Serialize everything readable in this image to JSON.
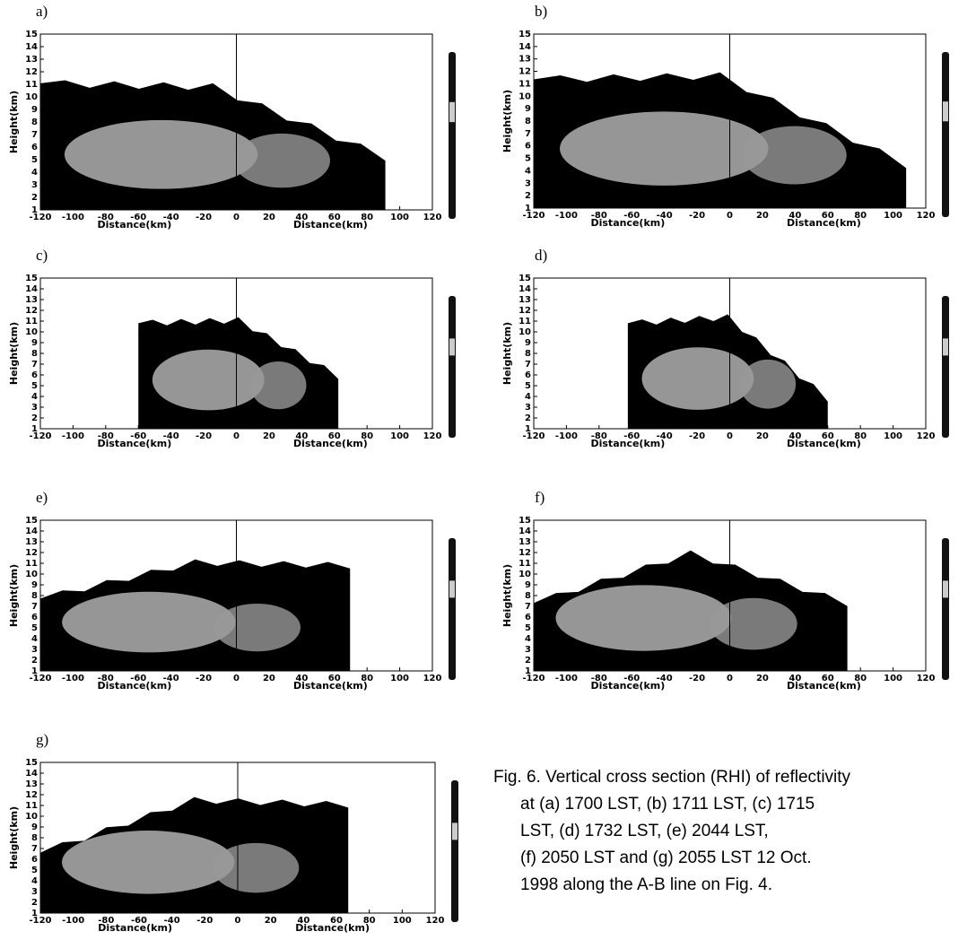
{
  "axes": {
    "x_label": "Distance(km)",
    "y_label": "Height(km)",
    "xticks": [
      -120,
      -100,
      -80,
      -60,
      -40,
      -20,
      0,
      20,
      40,
      60,
      80,
      100,
      120
    ],
    "yticks": [
      1,
      2,
      3,
      4,
      5,
      6,
      7,
      8,
      9,
      10,
      11,
      12,
      13,
      14,
      15
    ],
    "xlim": [
      -120,
      120
    ],
    "ylim": [
      1,
      15
    ]
  },
  "panels": [
    {
      "label": "a)"
    },
    {
      "label": "b)"
    },
    {
      "label": "c)"
    },
    {
      "label": "d)"
    },
    {
      "label": "e)"
    },
    {
      "label": "f)"
    },
    {
      "label": "g)"
    }
  ],
  "caption": {
    "lines": [
      "Fig. 6. Vertical cross section (RHI) of reflectivity",
      "at (a) 1700 LST, (b) 1711 LST, (c) 1715",
      "LST, (d) 1732 LST, (e) 2044 LST,",
      "(f) 2050 LST and (g) 2055 LST 12 Oct.",
      "1998 along the A-B line on Fig. 4."
    ]
  }
}
